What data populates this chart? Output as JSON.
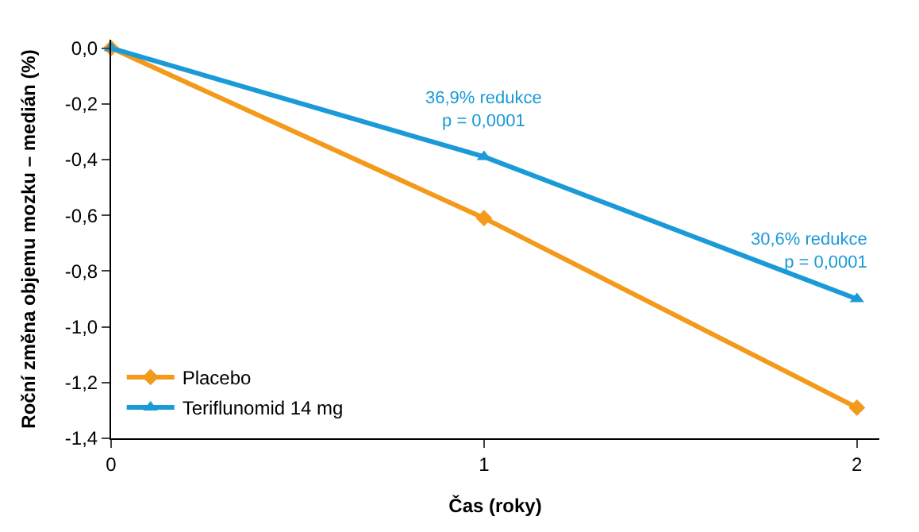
{
  "chart_data": {
    "type": "line",
    "xlabel": "Čas (roky)",
    "ylabel": "Roční změna objemu mozku – medián (%)",
    "x": [
      0,
      1,
      2
    ],
    "series": [
      {
        "name": "Placebo",
        "color": "#f39a1b",
        "marker": "diamond",
        "values": [
          0,
          -0.61,
          -1.29
        ]
      },
      {
        "name": "Teriflunomid 14 mg",
        "color": "#1a9ad6",
        "marker": "triangle",
        "values": [
          0,
          -0.39,
          -0.9
        ]
      }
    ],
    "xlim": [
      0,
      2.06
    ],
    "xticks": [
      0,
      1,
      2
    ],
    "ylim": [
      -1.4,
      0.03
    ],
    "yticks": [
      {
        "value": 0,
        "label": "0,0"
      },
      {
        "value": -0.2,
        "label": "-0,2"
      },
      {
        "value": -0.4,
        "label": "-0,4"
      },
      {
        "value": -0.6,
        "label": "-0,6"
      },
      {
        "value": -0.8,
        "label": "-0,8"
      },
      {
        "value": -1.0,
        "label": "-1,0"
      },
      {
        "value": -1.2,
        "label": "-1,2"
      },
      {
        "value": -1.4,
        "label": "-1,4"
      }
    ],
    "annotations": [
      {
        "text": "36,9% redukce\np = 0,0001",
        "x": 1,
        "y": -0.39
      },
      {
        "text": "30,6% redukce\np = 0,0001",
        "x": 2,
        "y": -0.9
      }
    ],
    "legend": "bottom left",
    "line_style": "solid"
  }
}
